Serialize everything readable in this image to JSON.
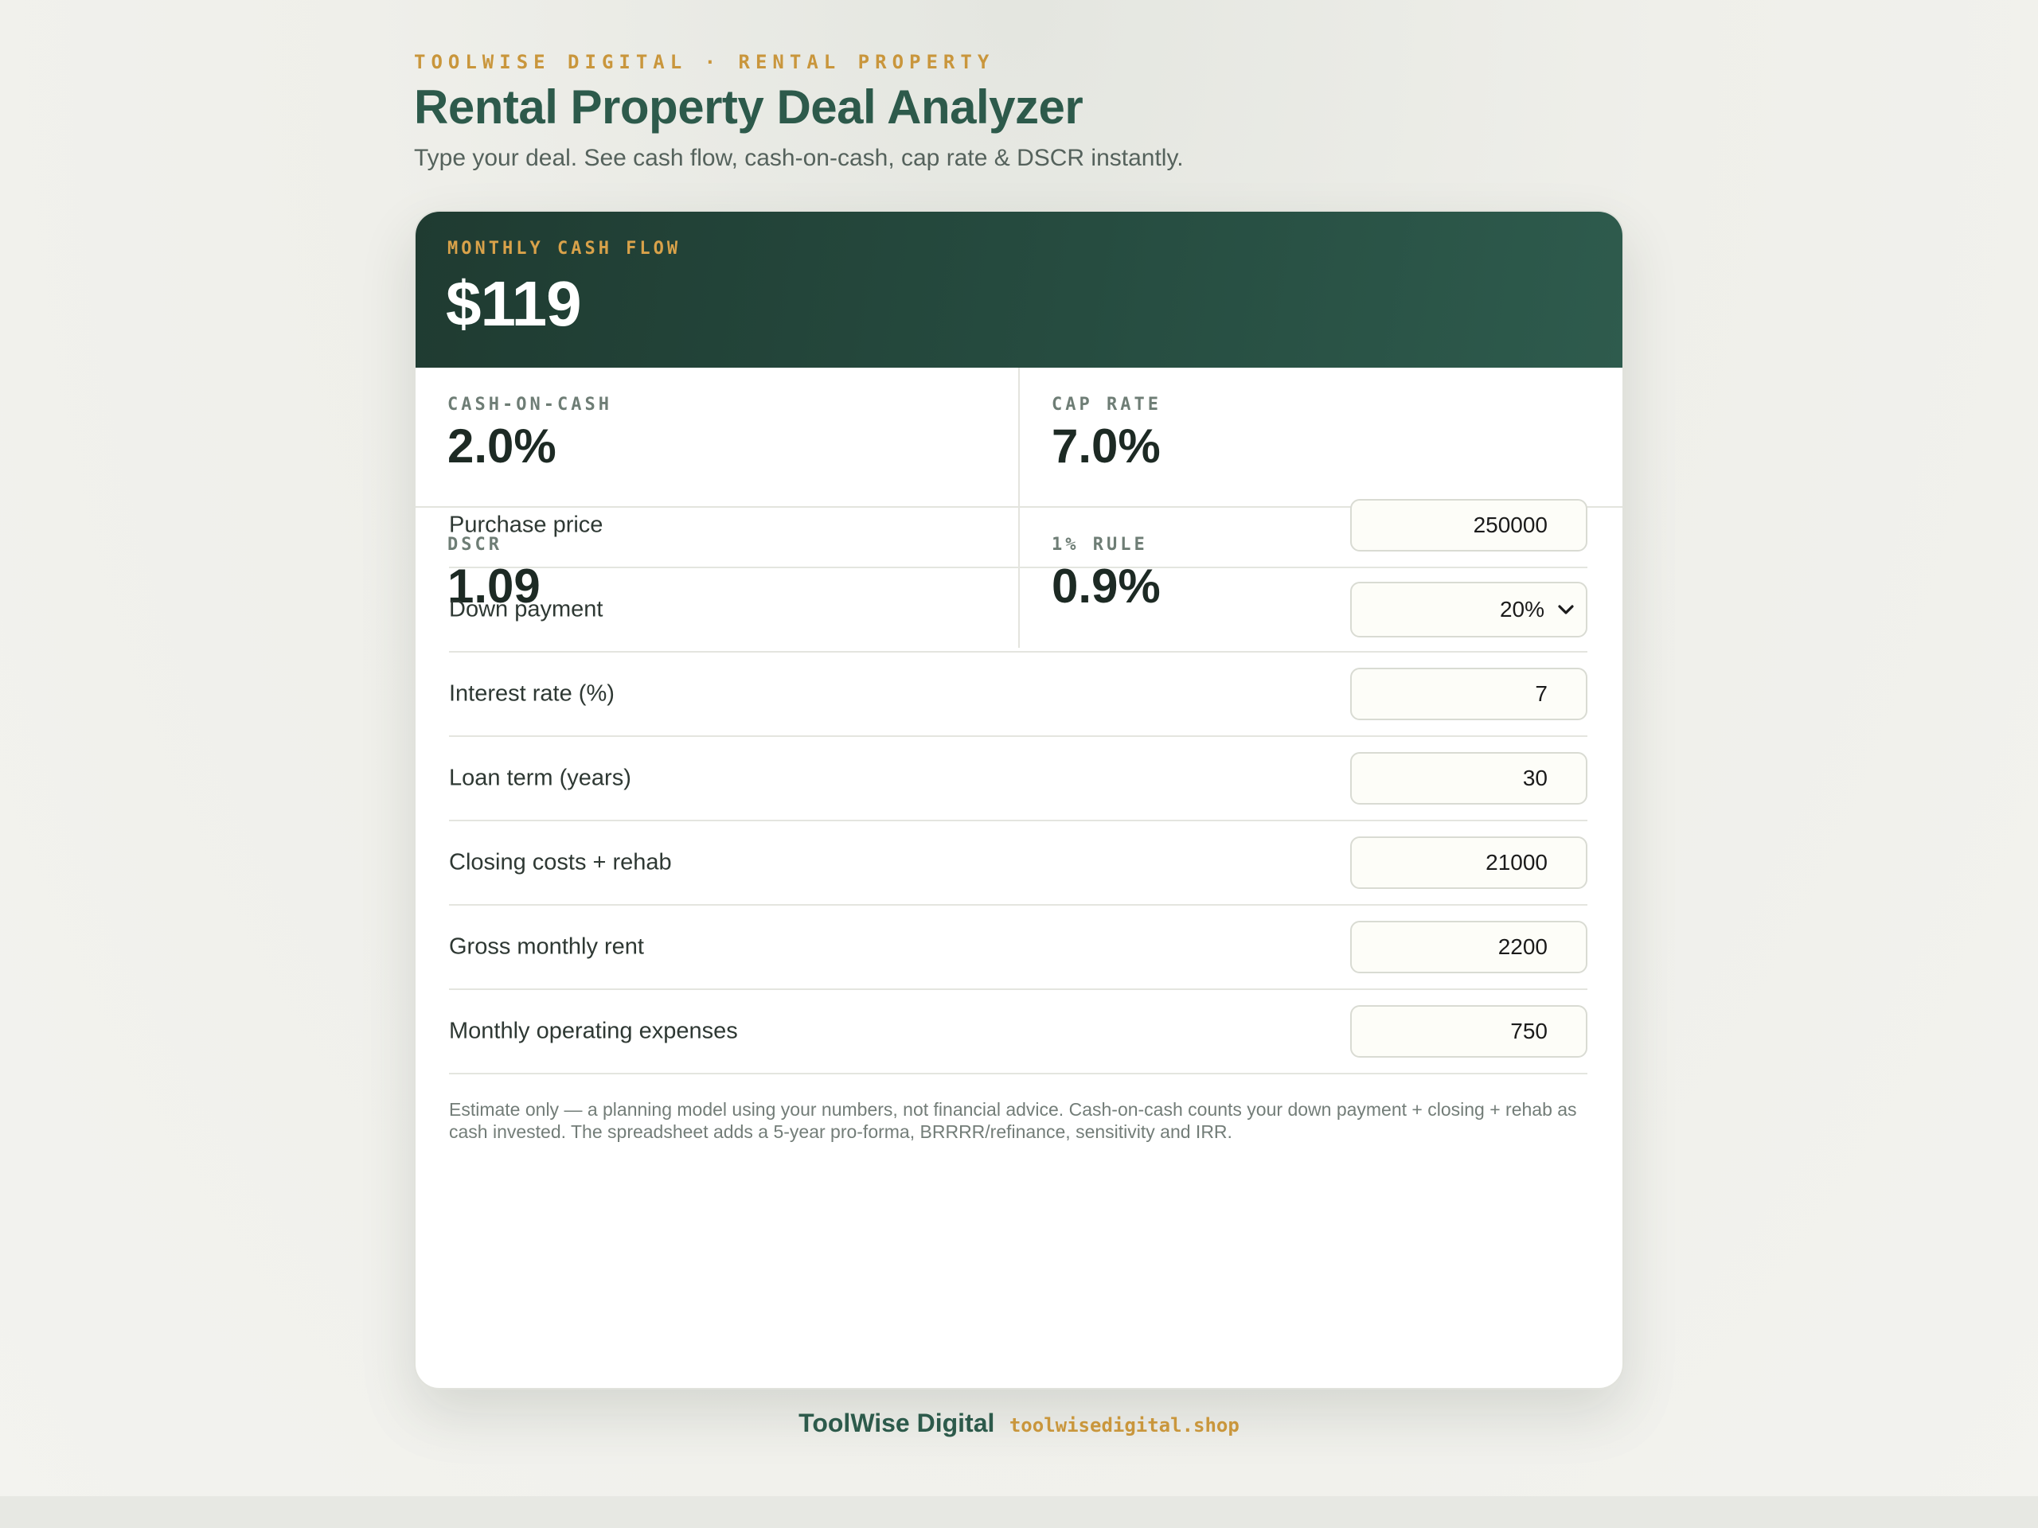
{
  "header": {
    "eyebrow": "TOOLWISE DIGITAL · RENTAL PROPERTY",
    "title": "Rental Property Deal Analyzer",
    "subtitle": "Type your deal. See cash flow, cash-on-cash, cap rate & DSCR instantly."
  },
  "hero": {
    "label": "MONTHLY CASH FLOW",
    "value": "$119"
  },
  "metrics": [
    {
      "label": "CASH-ON-CASH",
      "value": "2.0%"
    },
    {
      "label": "CAP RATE",
      "value": "7.0%"
    },
    {
      "label": "DSCR",
      "value": "1.09"
    },
    {
      "label": "1% RULE",
      "value": "0.9%"
    }
  ],
  "inputs": {
    "purchase_price": {
      "label": "Purchase price",
      "value": "250000"
    },
    "down_payment": {
      "label": "Down payment",
      "value": "20%"
    },
    "interest_rate": {
      "label": "Interest rate (%)",
      "value": "7"
    },
    "loan_term": {
      "label": "Loan term (years)",
      "value": "30"
    },
    "closing_costs": {
      "label": "Closing costs + rehab",
      "value": "21000"
    },
    "gross_rent": {
      "label": "Gross monthly rent",
      "value": "2200"
    },
    "operating_expenses": {
      "label": "Monthly operating expenses",
      "value": "750"
    }
  },
  "disclaimer": "Estimate only — a planning model using your numbers, not financial advice. Cash-on-cash counts your down payment + closing + rehab as cash invested. The spreadsheet adds a 5-year pro-forma, BRRRR/refinance, sensitivity and IRR.",
  "footer": {
    "brand": "ToolWise Digital",
    "link": "toolwisedigital.shop"
  },
  "colors": {
    "accent_gold": "#c9963c",
    "brand_green": "#2d5a4b",
    "hero_dark": "#1f3b31"
  }
}
